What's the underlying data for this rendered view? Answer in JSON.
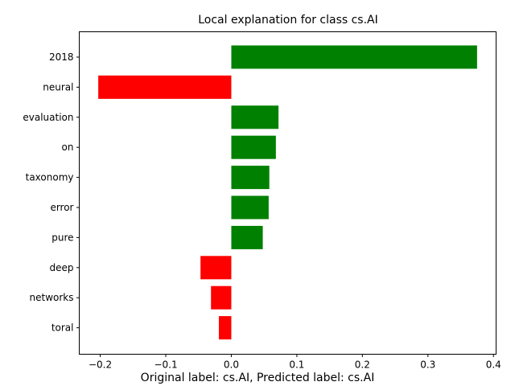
{
  "chart_data": {
    "type": "bar",
    "orientation": "horizontal",
    "title": "Local explanation for class cs.AI",
    "caption": "Original label: cs.AI, Predicted label: cs.AI",
    "xlabel": "",
    "ylabel": "",
    "xlim": [
      -0.232,
      0.404
    ],
    "xticks": [
      -0.2,
      -0.1,
      0.0,
      0.1,
      0.2,
      0.3,
      0.4
    ],
    "xtick_labels": [
      "−0.2",
      "−0.1",
      "0.0",
      "0.1",
      "0.2",
      "0.3",
      "0.4"
    ],
    "grid": false,
    "positive_color": "#008000",
    "negative_color": "#ff0000",
    "categories": [
      "2018",
      "neural",
      "evaluation",
      "on",
      "taxonomy",
      "error",
      "pure",
      "deep",
      "networks",
      "toral"
    ],
    "values": [
      0.375,
      -0.203,
      0.072,
      0.068,
      0.058,
      0.057,
      0.048,
      -0.047,
      -0.031,
      -0.019
    ]
  }
}
